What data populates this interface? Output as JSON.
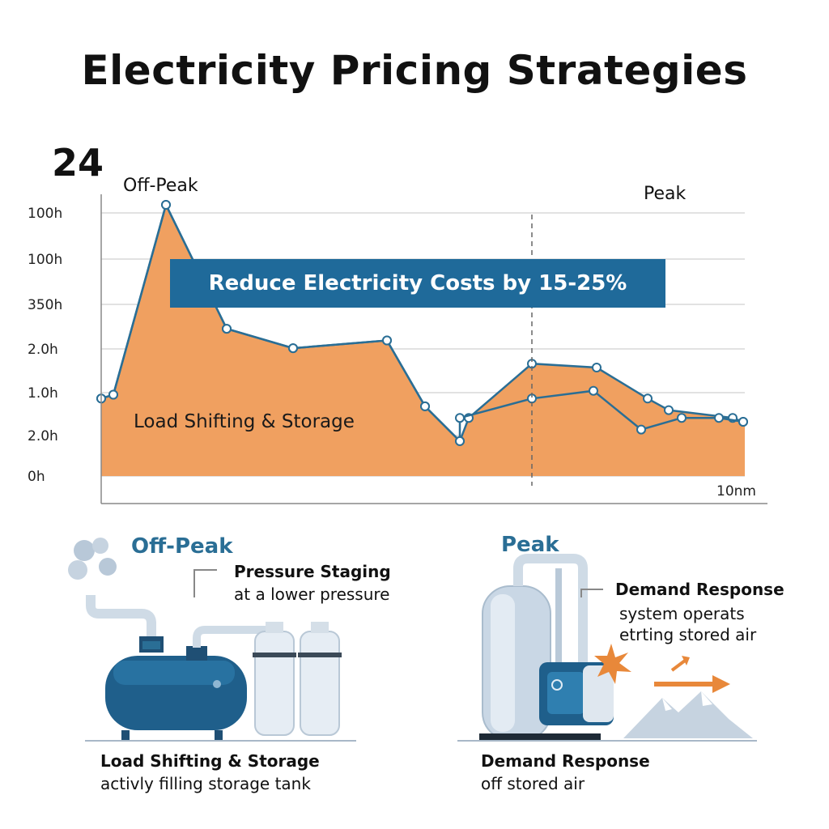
{
  "title": "Electricity Pricing Strategies",
  "chart_data": {
    "type": "area",
    "title": "Electricity Pricing Strategies",
    "corner_value": "24",
    "y_tick_labels": [
      "100h",
      "100h",
      "350h",
      "2.0h",
      "1.0h",
      "2.0h",
      "0h"
    ],
    "x_end_label": "10nm",
    "zone_labels": {
      "left": "Off-Peak",
      "right": "Peak"
    },
    "banner": "Reduce Electricity Costs by 15-25%",
    "area_label": "Load Shifting & Storage",
    "series": [
      {
        "values": [
          2.0,
          2.1,
          7.0,
          3.8,
          3.3,
          3.5,
          1.8,
          0.9,
          1.5,
          2.9,
          2.8,
          2.0,
          1.7,
          1.5,
          1.4
        ]
      },
      {
        "values": [
          2.0,
          2.1,
          7.0,
          3.8,
          3.3,
          3.5,
          1.8,
          0.9,
          1.5,
          2.0,
          2.2,
          1.2,
          1.5,
          1.5,
          1.4
        ]
      }
    ],
    "grid": true,
    "colors": {
      "area": "#f0a060",
      "line": "#2a6e95",
      "marker_fill": "#ffffff"
    }
  },
  "panels": {
    "off_peak": {
      "heading": "Off-Peak",
      "callout_title": "Pressure Staging",
      "callout_text": "at a lower pressure",
      "caption_title": "Load Shifting & Storage",
      "caption_text": "activly filling storage tank"
    },
    "peak": {
      "heading": "Peak",
      "callout_title": "Demand Response",
      "callout_text_1": "system operats",
      "callout_text_2": "etrting stored air",
      "caption_title": "Demand Response",
      "caption_text": "off stored air"
    }
  },
  "icons": [
    "compressor-tank-icon",
    "storage-cylinder-icon",
    "steam-cloud-icon",
    "air-tank-icon",
    "spark-icon",
    "arrow-right-icon",
    "mountain-icon"
  ]
}
